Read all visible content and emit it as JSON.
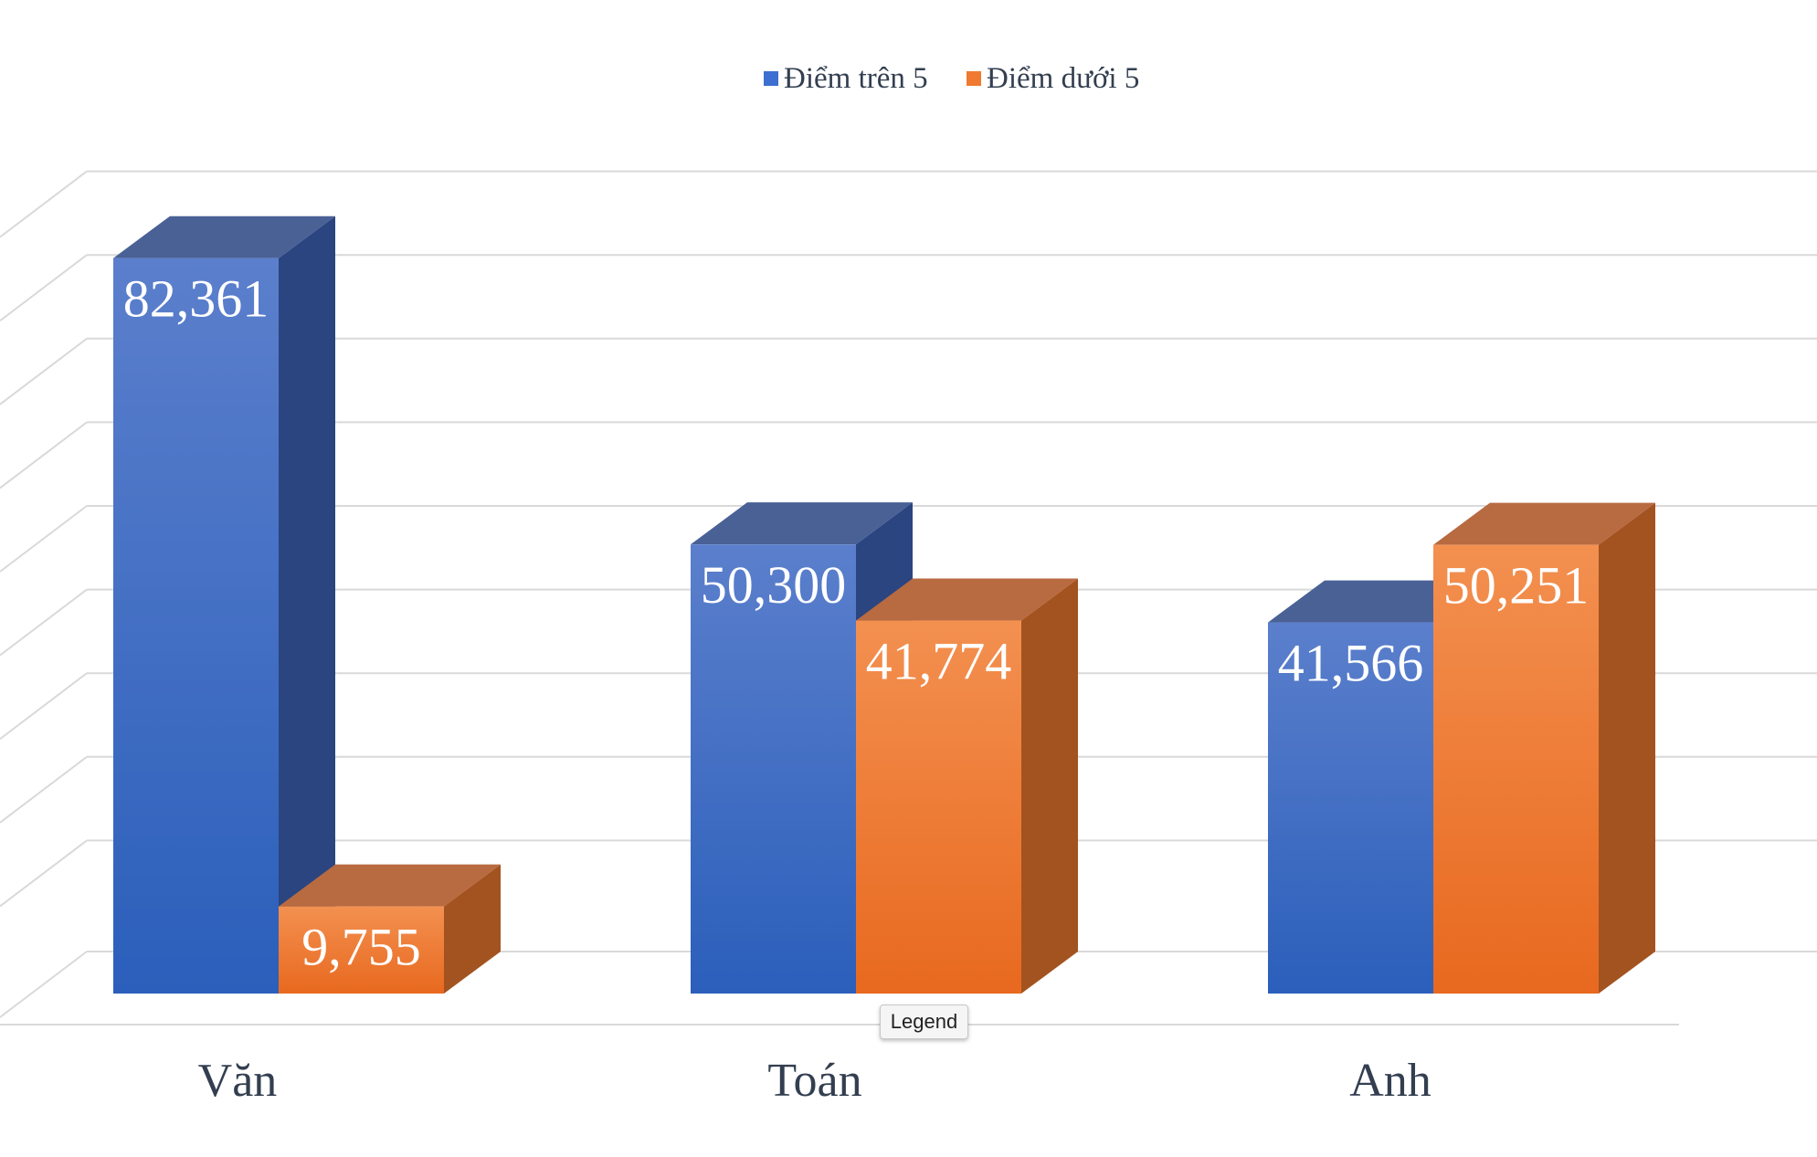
{
  "chart_data": {
    "type": "bar",
    "categories": [
      "Văn",
      "Toán",
      "Anh"
    ],
    "series": [
      {
        "name": "Điểm trên 5",
        "values": [
          82361,
          50300,
          41566
        ],
        "labels": [
          "82,361",
          "50,300",
          "41,566"
        ]
      },
      {
        "name": "Điểm dưới 5",
        "values": [
          9755,
          41774,
          50251
        ],
        "labels": [
          "9,755",
          "41,774",
          "50,251"
        ]
      }
    ],
    "ylim": [
      0,
      90000
    ],
    "grid": true,
    "legend_position": "top",
    "three_d": true,
    "colors": {
      "series1_top": "#5b7fcc",
      "series1_bottom": "#2b5fbb",
      "series1_side": "#2a4580",
      "series1_cap": "#4a6196",
      "series2_top": "#f39050",
      "series2_bottom": "#e8691f",
      "series2_side": "#a3531f",
      "series2_cap": "#b86a41",
      "grid": "#d9d9d9",
      "text": "#333f50"
    }
  },
  "tooltip": {
    "text": "Legend"
  }
}
